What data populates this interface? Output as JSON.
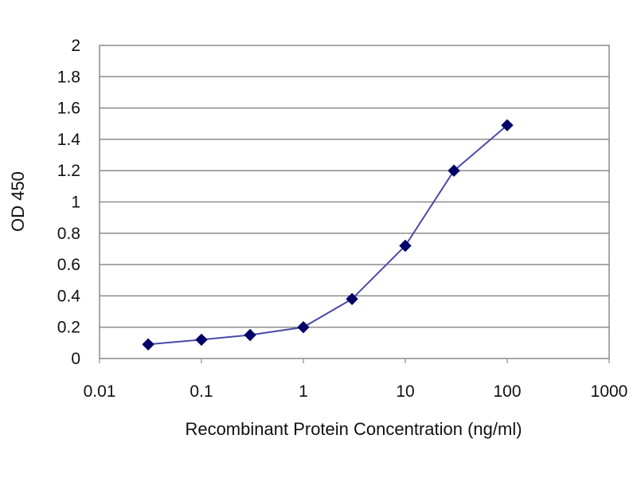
{
  "chart_data": {
    "type": "line",
    "title": "",
    "xlabel": "Recombinant Protein Concentration (ng/ml)",
    "ylabel": "OD 450",
    "xscale": "log",
    "xlim": [
      0.01,
      1000
    ],
    "ylim": [
      0,
      2
    ],
    "grid": "horizontal",
    "x_ticks": [
      "0.01",
      "0.1",
      "1",
      "10",
      "100",
      "1000"
    ],
    "y_ticks": [
      "0",
      "0.2",
      "0.4",
      "0.6",
      "0.8",
      "1",
      "1.2",
      "1.4",
      "1.6",
      "1.8",
      "2"
    ],
    "series": [
      {
        "x": [
          0.03,
          0.1,
          0.3,
          1,
          3,
          10,
          30,
          100
        ],
        "y": [
          0.09,
          0.12,
          0.15,
          0.2,
          0.38,
          0.72,
          1.2,
          1.49
        ],
        "color": "#4a4aa8",
        "marker_color": "#000066",
        "marker": "diamond"
      }
    ],
    "colors": {
      "plot_border": "#8c8c8c",
      "gridline": "#8c8c8c",
      "text": "#111111"
    }
  }
}
